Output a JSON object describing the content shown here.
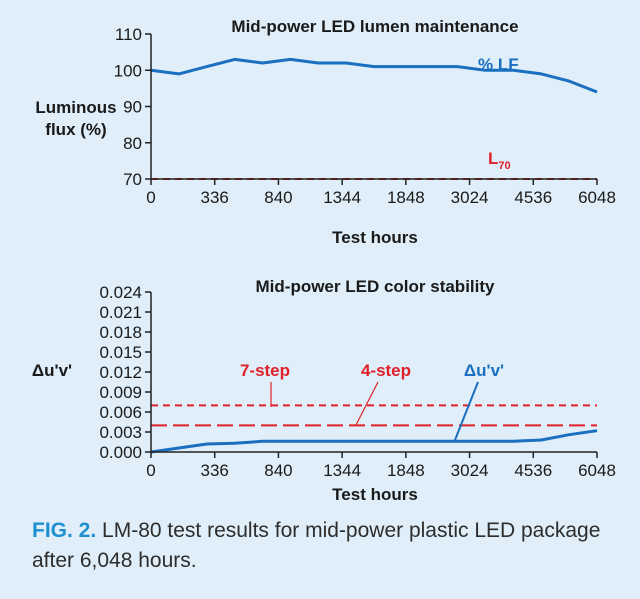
{
  "chart_data": [
    {
      "type": "line",
      "title": "Mid-power LED lumen maintenance",
      "ylabel_line1": "Luminous",
      "ylabel_line2": "flux (%)",
      "xlabel": "Test hours",
      "x_tick_labels": [
        "0",
        "336",
        "840",
        "1344",
        "1848",
        "3024",
        "4536",
        "6048"
      ],
      "y_tick_labels": [
        "70",
        "80",
        "90",
        "100",
        "110"
      ],
      "ylim": [
        70,
        110
      ],
      "grid": false,
      "series": [
        {
          "name": "% LF",
          "color": "#1a6fc0",
          "style": "solid",
          "x": [
            0,
            1,
            2,
            3,
            4,
            5,
            6,
            7,
            8,
            9,
            10,
            11,
            12,
            13,
            14,
            15,
            16
          ],
          "values": [
            100,
            99,
            101,
            103,
            102,
            103,
            102,
            102,
            101,
            101,
            101,
            101,
            100,
            100,
            99,
            97,
            94
          ]
        }
      ],
      "reference_lines": [
        {
          "name": "L",
          "subscript": "70",
          "value": 70,
          "color": "#e0202a",
          "style": "dashed"
        }
      ]
    },
    {
      "type": "line",
      "title": "Mid-power LED color stability",
      "ylabel": "Δu'v'",
      "xlabel": "Test hours",
      "x_tick_labels": [
        "0",
        "336",
        "840",
        "1344",
        "1848",
        "3024",
        "4536",
        "6048"
      ],
      "y_tick_labels": [
        "0.000",
        "0.003",
        "0.006",
        "0.009",
        "0.012",
        "0.015",
        "0.018",
        "0.021",
        "0.024"
      ],
      "ylim": [
        0,
        0.024
      ],
      "grid": false,
      "series": [
        {
          "name": "Δu'v'",
          "color": "#1a6fc0",
          "style": "solid",
          "x": [
            0,
            1,
            2,
            3,
            4,
            5,
            6,
            7,
            8,
            9,
            10,
            11,
            12,
            13,
            14,
            15,
            16
          ],
          "values": [
            0.0,
            0.0006,
            0.0012,
            0.0013,
            0.0016,
            0.0016,
            0.0016,
            0.0016,
            0.0016,
            0.0016,
            0.0016,
            0.0016,
            0.0016,
            0.0016,
            0.0018,
            0.0026,
            0.0032
          ]
        }
      ],
      "reference_lines": [
        {
          "name": "7-step",
          "value": 0.007,
          "color": "#e0202a",
          "style": "dashed"
        },
        {
          "name": "4-step",
          "value": 0.004,
          "color": "#e0202a",
          "style": "long-dashed"
        }
      ]
    }
  ],
  "caption": {
    "label": "FIG. 2.",
    "text": "LM-80 test results for mid-power plastic LED package after 6,048 hours."
  }
}
